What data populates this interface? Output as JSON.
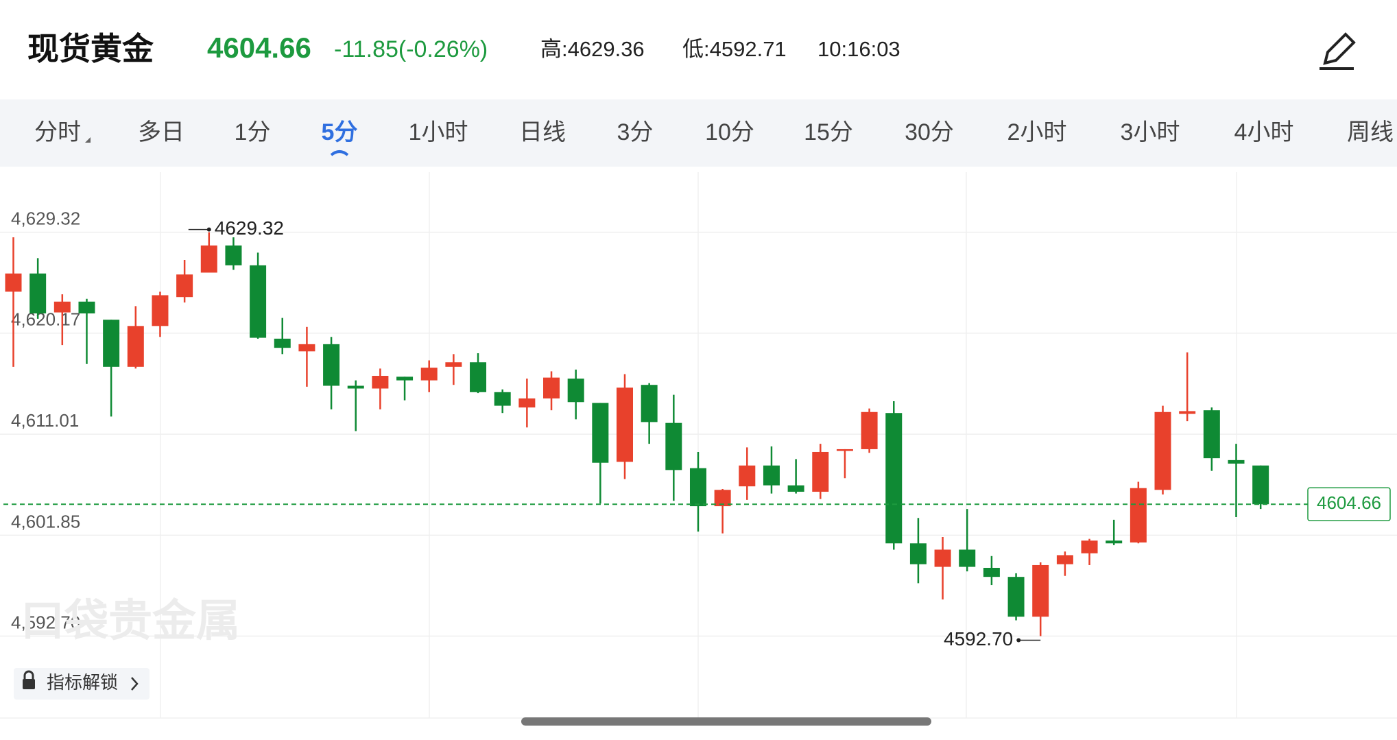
{
  "header": {
    "title": "现货黄金",
    "price": "4604.66",
    "change": "-11.85(-0.26%)",
    "high": "高:4629.36",
    "low": "低:4592.71",
    "time": "10:16:03"
  },
  "tabs": [
    {
      "label": "分时",
      "selected": false
    },
    {
      "label": "多日",
      "selected": false
    },
    {
      "label": "1分",
      "selected": false
    },
    {
      "label": "5分",
      "selected": true
    },
    {
      "label": "1小时",
      "selected": false
    },
    {
      "label": "日线",
      "selected": false
    },
    {
      "label": "3分",
      "selected": false
    },
    {
      "label": "10分",
      "selected": false
    },
    {
      "label": "15分",
      "selected": false
    },
    {
      "label": "30分",
      "selected": false
    },
    {
      "label": "2小时",
      "selected": false
    },
    {
      "label": "3小时",
      "selected": false
    },
    {
      "label": "4小时",
      "selected": false
    },
    {
      "label": "周线",
      "selected": false
    }
  ],
  "watermark": "口袋贵金属",
  "button": "指标解锁",
  "chart_data": {
    "type": "candlestick",
    "open": [
      4623.93,
      4625.58,
      4622.05,
      4623.03,
      4621.39,
      4617.12,
      4620.82,
      4623.44,
      4625.66,
      4628.12,
      4626.32,
      4619.67,
      4618.52,
      4619.17,
      4615.4,
      4615.15,
      4616.22,
      4615.89,
      4617.12,
      4617.53,
      4614.82,
      4613.43,
      4614.25,
      4616.05,
      4613.84,
      4608.5,
      4615.48,
      4612.03,
      4607.93,
      4604.48,
      4606.28,
      4608.17,
      4606.37,
      4605.79,
      4609.49,
      4609.65,
      4612.93,
      4601.11,
      4598.98,
      4600.54,
      4598.89,
      4598.07,
      4594.46,
      4599.22,
      4600.21,
      4601.36,
      4601.19,
      4605.96,
      4612.85,
      4613.18,
      4608.66,
      4608.17
    ],
    "high": [
      4628.86,
      4626.97,
      4623.69,
      4623.28,
      4621.39,
      4622.62,
      4623.93,
      4626.81,
      4629.32,
      4628.86,
      4627.47,
      4621.55,
      4620.73,
      4619.83,
      4615.89,
      4616.96,
      4616.22,
      4617.7,
      4618.27,
      4618.35,
      4615.07,
      4616.05,
      4616.71,
      4616.87,
      4613.84,
      4616.46,
      4615.64,
      4614.58,
      4609.4,
      4606.04,
      4609.81,
      4609.9,
      4608.75,
      4610.14,
      4609.65,
      4613.34,
      4614.0,
      4603.41,
      4601.69,
      4604.23,
      4599.96,
      4598.4,
      4599.39,
      4600.37,
      4601.52,
      4603.25,
      4606.69,
      4613.59,
      4618.43,
      4613.43,
      4610.14,
      4608.17
    ],
    "low": [
      4617.12,
      4621.47,
      4619.09,
      4617.37,
      4612.61,
      4616.96,
      4619.83,
      4622.95,
      4625.66,
      4625.91,
      4619.67,
      4618.27,
      4615.31,
      4613.26,
      4611.29,
      4613.26,
      4614.08,
      4614.82,
      4615.48,
      4614.74,
      4612.93,
      4611.62,
      4613.18,
      4612.36,
      4604.72,
      4606.94,
      4610.14,
      4604.97,
      4602.18,
      4602.01,
      4605.05,
      4605.63,
      4605.63,
      4605.13,
      4607.02,
      4609.32,
      4600.54,
      4597.5,
      4596.02,
      4598.57,
      4597.33,
      4594.13,
      4592.7,
      4598.16,
      4599.14,
      4600.95,
      4601.11,
      4605.54,
      4612.19,
      4607.68,
      4603.49,
      4604.23
    ],
    "close": [
      4625.58,
      4621.96,
      4623.03,
      4621.96,
      4617.12,
      4620.82,
      4623.61,
      4625.49,
      4628.12,
      4626.32,
      4619.75,
      4618.84,
      4619.17,
      4615.4,
      4615.15,
      4616.3,
      4615.89,
      4617.04,
      4617.53,
      4614.82,
      4613.59,
      4614.25,
      4616.14,
      4613.92,
      4608.42,
      4615.23,
      4612.11,
      4607.76,
      4604.48,
      4605.96,
      4608.17,
      4606.37,
      4605.79,
      4609.4,
      4609.65,
      4613.02,
      4601.11,
      4599.22,
      4600.54,
      4598.98,
      4598.07,
      4594.46,
      4599.14,
      4600.04,
      4601.36,
      4601.11,
      4606.12,
      4613.02,
      4613.1,
      4608.83,
      4608.34,
      4604.66
    ],
    "up_color": "#e8412c",
    "down_color": "#0f8a34",
    "last_price": 4604.66,
    "high_label": "4629.32",
    "low_label": "4592.70",
    "ylim": [
      4585.27,
      4634.77
    ],
    "yticks": [
      {
        "value": 4629.32,
        "label": "4,629.32"
      },
      {
        "value": 4620.17,
        "label": "4,620.17"
      },
      {
        "value": 4611.01,
        "label": "4,611.01"
      },
      {
        "value": 4601.85,
        "label": "4,601.85"
      },
      {
        "value": 4592.7,
        "label": "4,592.70"
      }
    ],
    "grid": true
  }
}
